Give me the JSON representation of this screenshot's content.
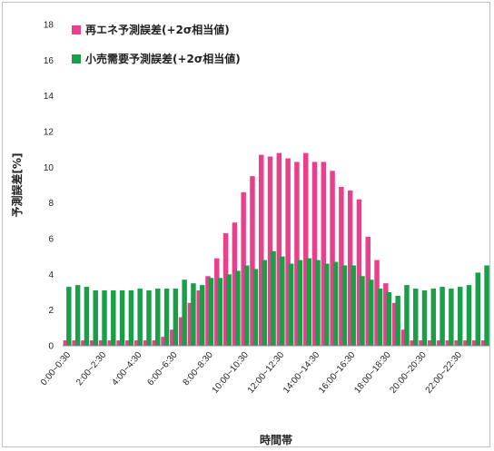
{
  "chart_data": {
    "type": "bar",
    "xlabel": "時間帯",
    "ylabel": "予測誤差[%]",
    "ylim": [
      0,
      18
    ],
    "y_ticks": [
      0,
      2,
      4,
      6,
      8,
      10,
      12,
      14,
      16,
      18
    ],
    "grid": false,
    "legend_position": "top-left",
    "categories": [
      "0:00~0:30",
      "0:30~1:00",
      "1:00~1:30",
      "1:30~2:00",
      "2:00~2:30",
      "2:30~3:00",
      "3:00~3:30",
      "3:30~4:00",
      "4:00~4:30",
      "4:30~5:00",
      "5:00~5:30",
      "5:30~6:00",
      "6:00~6:30",
      "6:30~7:00",
      "7:00~7:30",
      "7:30~8:00",
      "8:00~8:30",
      "8:30~9:00",
      "9:00~9:30",
      "9:30~10:00",
      "10:00~10:30",
      "10:30~11:00",
      "11:00~11:30",
      "11:30~12:00",
      "12:00~12:30",
      "12:30~13:00",
      "13:00~13:30",
      "13:30~14:00",
      "14:00~14:30",
      "14:30~15:00",
      "15:00~15:30",
      "15:30~16:00",
      "16:00~16:30",
      "16:30~17:00",
      "17:00~17:30",
      "17:30~18:00",
      "18:00~18:30",
      "18:30~19:00",
      "19:00~19:30",
      "19:30~20:00",
      "20:00~20:30",
      "20:30~21:00",
      "21:00~21:30",
      "21:30~22:00",
      "22:00~22:30",
      "22:30~23:00",
      "23:00~23:30",
      "23:30~24:00"
    ],
    "tick_labels": [
      "0:00~0:30",
      "2:00~2:30",
      "4:00~4:30",
      "6:00~6:30",
      "8:00~8:30",
      "10:00~10:30",
      "12:00~12:30",
      "14:00~14:30",
      "16:00~16:30",
      "18:00~18:30",
      "20:00~20:30",
      "22:00~22:30"
    ],
    "series": [
      {
        "name": "再エネ予測誤差(+2σ相当値)",
        "color": "#e8408a",
        "values": [
          0.3,
          0.3,
          0.3,
          0.3,
          0.3,
          0.3,
          0.3,
          0.3,
          0.3,
          0.3,
          0.3,
          0.5,
          0.9,
          1.6,
          2.4,
          3.1,
          3.9,
          4.9,
          6.3,
          6.9,
          8.6,
          9.5,
          10.7,
          10.6,
          10.8,
          10.5,
          10.3,
          10.8,
          10.3,
          10.3,
          9.8,
          8.9,
          8.7,
          8.2,
          6.1,
          4.8,
          3.5,
          2.4,
          0.9,
          0.3,
          0.3,
          0.3,
          0.3,
          0.3,
          0.3,
          0.3,
          0.3,
          0.3
        ]
      },
      {
        "name": "小売需要予測誤差(+2σ相当値)",
        "color": "#1a9e4a",
        "values": [
          3.3,
          3.4,
          3.3,
          3.1,
          3.1,
          3.1,
          3.1,
          3.1,
          3.2,
          3.1,
          3.2,
          3.2,
          3.2,
          3.7,
          3.5,
          3.4,
          3.8,
          3.8,
          4.0,
          4.2,
          4.5,
          4.3,
          4.8,
          5.3,
          5.0,
          4.6,
          4.8,
          4.9,
          4.8,
          4.6,
          4.7,
          4.5,
          4.5,
          3.9,
          3.7,
          3.2,
          3.0,
          2.8,
          3.4,
          3.2,
          3.1,
          3.2,
          3.3,
          3.2,
          3.3,
          3.4,
          4.1,
          4.5
        ]
      }
    ]
  }
}
